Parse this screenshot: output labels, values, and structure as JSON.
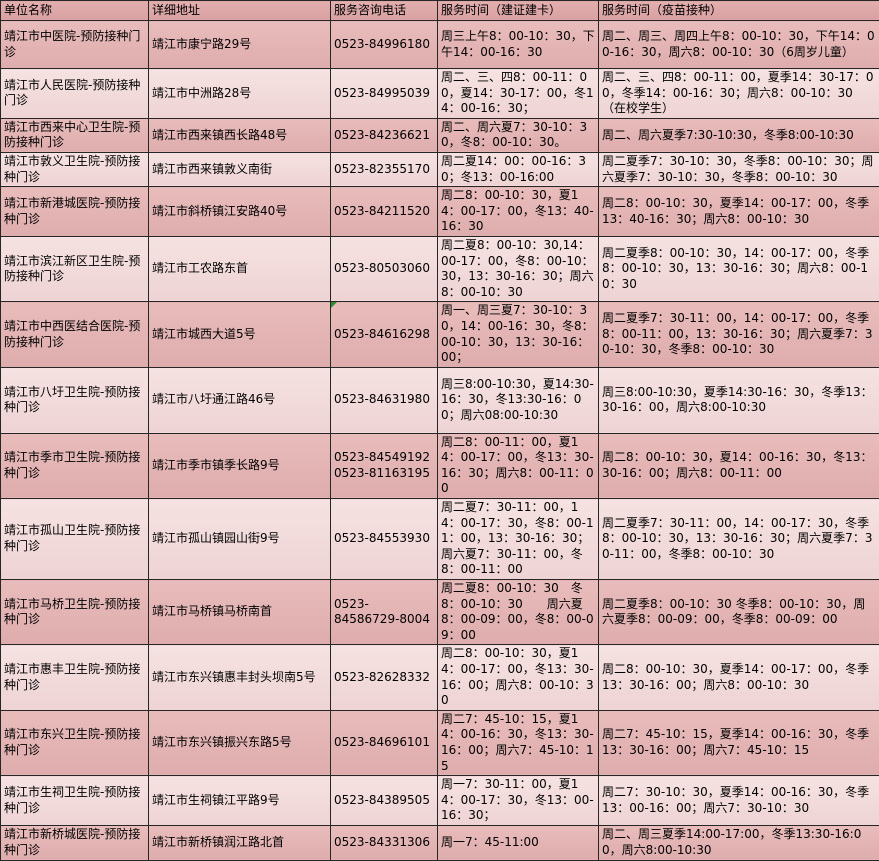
{
  "colors": {
    "header_bg": "#dda7a9",
    "row_dark_bg": "#e3b3b3",
    "row_light_bg": "#f3dcdc",
    "border": "#262626",
    "text": "#000000",
    "error_marker_green": "#2e8b2e"
  },
  "table": {
    "columns": [
      {
        "label": "单位名称"
      },
      {
        "label": "详细地址"
      },
      {
        "label": "服务咨询电话"
      },
      {
        "label": "服务时间（建证建卡）"
      },
      {
        "label": "服务时间（疫苗接种）"
      }
    ],
    "rows": [
      {
        "name": "靖江市中医院-预防接种门诊",
        "address": "靖江市康宁路29号",
        "phone": "0523-84996180",
        "time_card": "周三上午8：00-10：30，下午14：00-16：30",
        "time_vaccine": "周二、周三、周四上午8：00-10：30，下午14：00-16：30，周六8：00-10：30（6周岁儿童）"
      },
      {
        "name": "靖江市人民医院-预防接种门诊",
        "address": "靖江市中洲路28号",
        "phone": "0523-84995039",
        "time_card": "周二、三、四8：00-11：00，夏14：30-17：00，冬14：00-16：30；",
        "time_vaccine": "周二、三、四8：00-11：00，夏季14：30-17：00，冬季14：00-16：30；周六8：00-10：30（在校学生）"
      },
      {
        "name": "靖江市西来中心卫生院-预防接种门诊",
        "address": "靖江市西来镇西长路48号",
        "phone": "0523-84236621",
        "time_card": "周二、周六夏7：30-10：30，冬8：00-10：30。",
        "time_vaccine": "周二、周六夏季7:30-10:30，冬季8:00-10:30"
      },
      {
        "name": "靖江市敦义卫生院-预防接种门诊",
        "address": "靖江市西来镇敦义南街",
        "phone": "0523-82355170",
        "time_card": "周二夏14：00：00-16：30；冬13：00-16:00",
        "time_vaccine": "周二夏季7：30-10：30，冬季8：00-10：30；周六夏季7：30-10：30，冬季8：00-10：30"
      },
      {
        "name": "靖江市新港城医院-预防接种门诊",
        "address": "靖江市斜桥镇江安路40号",
        "phone": "0523-84211520",
        "time_card": "周二8：00-10：30，夏14：00-17：00，冬13：40-16：30",
        "time_vaccine": "周二8：00-10：30，夏季14：00-17：00，冬季13：40-16：30；周六8：00-10：30"
      },
      {
        "name": "靖江市滨江新区卫生院-预防接种门诊",
        "address": "靖江市工农路东首",
        "phone": "0523-80503060",
        "time_card": "周二夏8：00-10：30,14：00-17：00，冬8：00-10：30，13：30-16：30；周六8：00-10：30",
        "time_vaccine": "周二夏季8：00-10：30，14：00-17：00，冬季8：00-10：30，13：30-16：30；周六8：00-10：30"
      },
      {
        "name": "靖江市中西医结合医院-预防接种门诊",
        "address": "靖江市城西大道5号",
        "phone": "0523-84616298",
        "error_marker": true,
        "time_card": "周一、周三夏7：30-10：30，14：00-16：30，冬8：00-10：30，13：30-16：00；",
        "time_vaccine": "周二夏季7：30-11：00，14：00-17：00，冬季8：00-11：00，13：30-16：30；周六夏季7：30-10：30，冬季8：00-10：30"
      },
      {
        "name": "靖江市八圩卫生院-预防接种门诊",
        "address": "靖江市八圩通江路46号",
        "phone": "0523-84631980",
        "time_card": "周三8:00-10:30，夏14:30-16：30，冬13:30-16：00；周六08:00-10:30",
        "time_vaccine": "周三8:00-10:30，夏季14:30-16：30，冬季13：30-16：00，周六8:00-10:30"
      },
      {
        "name": "靖江市季市卫生院-预防接种门诊",
        "address": "靖江市季市镇季长路9号",
        "phone": "0523-84549192\n0523-81163195",
        "time_card": "周二8：00-11：00，夏14：00-17：00，冬13：30-16：30；周六8：00-11：00",
        "time_vaccine": "周二8：00-10：30，夏14：00-16：30，冬13：30-16：00；周六8：00-11：00"
      },
      {
        "name": "靖江市孤山卫生院-预防接种门诊",
        "address": "靖江市孤山镇园山街9号",
        "phone": "0523-84553930",
        "time_card": "周二夏7：30-11：00，14：00-17：30，冬8：00-11：00，13：30-16：30；周六夏7：30-11：00，冬8：00-11：00",
        "time_vaccine": "周二夏季7：30-11：00，14：00-17：30，冬季8：00-10：30，13：30-16：30；周六夏季7：30-11：00，冬季8：00-10：30"
      },
      {
        "name": "靖江市马桥卫生院-预防接种门诊",
        "address": "靖江市马桥镇马桥南首",
        "phone": "0523-\n84586729-8004",
        "time_card": "周二夏8：00-10：30　冬8：00-10：30　　周六夏8：00-09：00，冬8：00-09：00",
        "time_vaccine": "周二夏季8：00-10：30 冬季8：00-10：30，周六夏季8：00-09：00，冬季8：00-09：00"
      },
      {
        "name": "靖江市惠丰卫生院-预防接种门诊",
        "address": "靖江市东兴镇惠丰封头坝南5号",
        "phone": "0523-82628332",
        "time_card": "周二8：00-10：30，夏14：00-17：00，冬13：30-16：00；周六8：00-10：30",
        "time_vaccine": "周二8：00-10：30，夏季14：00-17：00，冬季13：30-16：00；周六8：00-10：30"
      },
      {
        "name": "靖江市东兴卫生院-预防接种门诊",
        "address": "靖江市东兴镇振兴东路5号",
        "phone": "0523-84696101",
        "time_card": "周二7：45-10：15，夏14：00-16：30，冬13：30-16：00；周六7：45-10：15",
        "time_vaccine": "周二7：45-10：15，夏季14：00-16：30，冬季13：30-16：00；周六7：45-10：15"
      },
      {
        "name": "靖江市生祠卫生院-预防接种门诊",
        "address": "靖江市生祠镇江平路9号",
        "phone": "0523-84389505",
        "time_card": "周一7：30-11：00，夏14：00-17：30，冬13：00-16：30；",
        "time_vaccine": "周二7：30-10：30，夏季14：00-16：30，冬季13：00-16：00；周六7：30-10：30"
      },
      {
        "name": "靖江市新桥城医院-预防接种门诊",
        "address": "靖江市新桥镇润江路北首",
        "phone": "0523-84331306",
        "time_card": "周一7：45-11:00",
        "time_vaccine": "周二、周三夏季14:00-17:00，冬季13:30-16:00，周六8:00-10:30"
      }
    ]
  }
}
